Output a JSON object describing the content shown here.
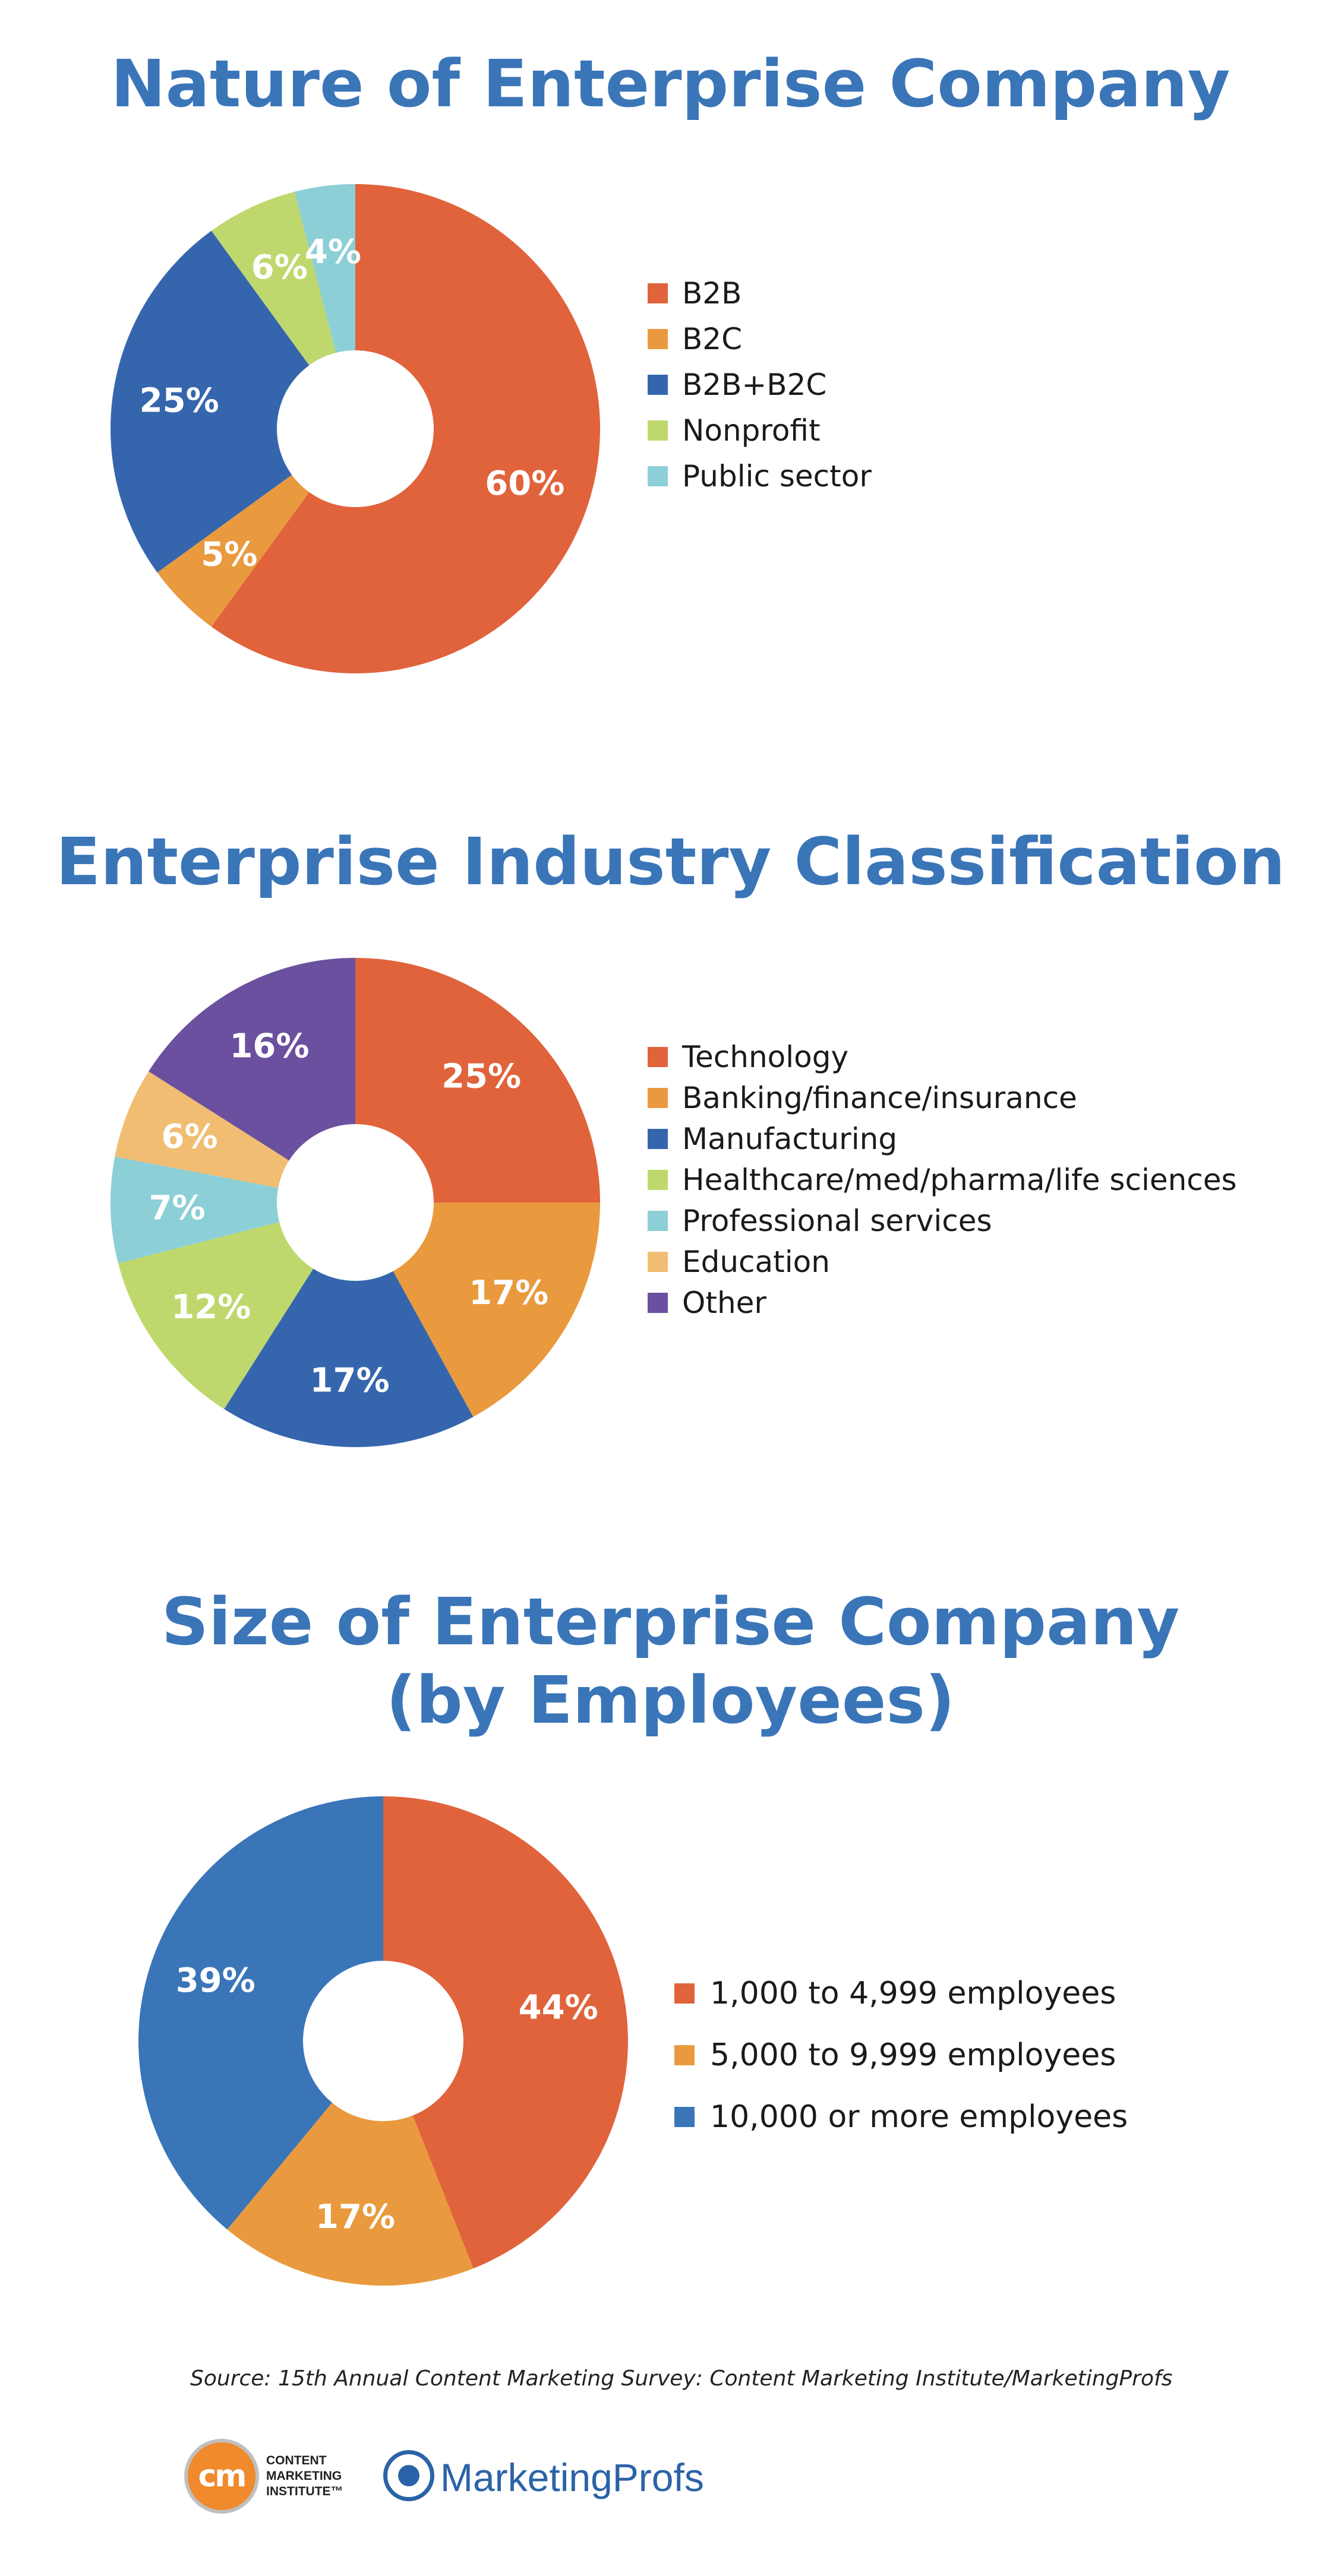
{
  "chart_data": [
    {
      "type": "pie",
      "title": "Nature of Enterprise Company",
      "categories": [
        "B2B",
        "B2C",
        "B2B+B2C",
        "Nonprofit",
        "Public sector"
      ],
      "values": [
        60,
        5,
        25,
        6,
        4
      ],
      "value_labels": [
        "60%",
        "5%",
        "25%",
        "6%",
        "4%"
      ],
      "colors": [
        "#e0633c",
        "#e99a3e",
        "#3566ad",
        "#bfd86d",
        "#8ccfd6"
      ],
      "legend_position": "right"
    },
    {
      "type": "pie",
      "title": "Enterprise Industry Classification",
      "categories": [
        "Technology",
        "Banking/finance/insurance",
        "Manufacturing",
        "Healthcare/med/pharma/life sciences",
        "Professional services",
        "Education",
        "Other"
      ],
      "values": [
        25,
        17,
        17,
        12,
        7,
        6,
        16
      ],
      "value_labels": [
        "25%",
        "17%",
        "17%",
        "12%",
        "7%",
        "6%",
        "16%"
      ],
      "colors": [
        "#e0633c",
        "#e99a3e",
        "#3566ad",
        "#bfd86d",
        "#8ccfd6",
        "#f1bd72",
        "#6a509e"
      ],
      "legend_position": "right"
    },
    {
      "type": "pie",
      "title": "Size of Enterprise Company (by Employees)",
      "title_lines": [
        "Size of Enterprise Company",
        "(by Employees)"
      ],
      "categories": [
        "1,000 to 4,999 employees",
        "5,000 to 9,999 employees",
        "10,000 or more employees"
      ],
      "values": [
        44,
        17,
        39
      ],
      "value_labels": [
        "44%",
        "17%",
        "39%"
      ],
      "colors": [
        "#e0633c",
        "#e99a3e",
        "#3a75b8"
      ],
      "legend_position": "right"
    }
  ],
  "title_color": "#3a75b8",
  "source": "Source: 15th Annual Content Marketing Survey: Content Marketing Institute/MarketingProfs",
  "logos": {
    "cmi": {
      "badge": "cm",
      "text": [
        "CONTENT",
        "MARKETING",
        "INSTITUTE™"
      ]
    },
    "mp": {
      "text": "MarketingProfs"
    }
  }
}
